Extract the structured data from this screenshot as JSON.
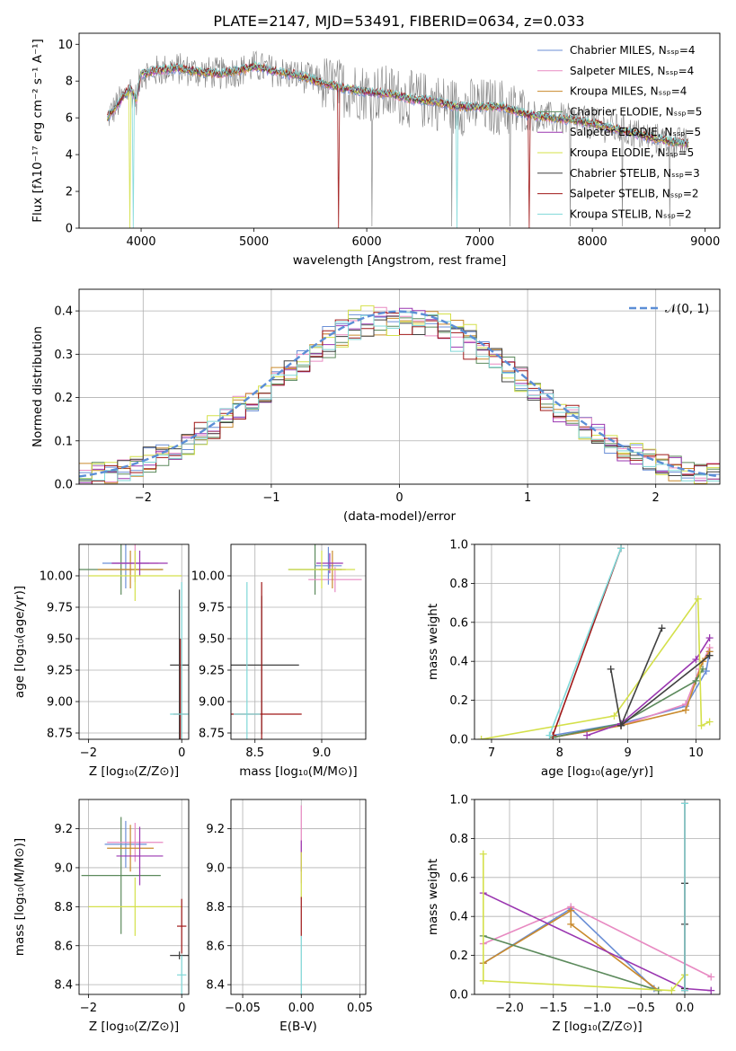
{
  "figure": {
    "title": "PLATE=2147, MJD=53491, FIBERID=0634, z=0.033"
  },
  "chart_data": [
    {
      "id": "spectrum",
      "type": "line",
      "title": "PLATE=2147, MJD=53491, FIBERID=0634, z=0.033",
      "xlabel": "wavelength [Angstrom, rest frame]",
      "ylabel": "Flux [fλ10⁻¹⁷ erg cm⁻² s⁻¹ A⁻¹]",
      "xlim": [
        3450,
        9130
      ],
      "ylim": [
        0,
        10.6
      ],
      "xticks": [
        "4000",
        "5000",
        "6000",
        "7000",
        "8000",
        "9000"
      ],
      "yticks": [
        "0",
        "2",
        "4",
        "6",
        "8",
        "10"
      ],
      "grid": false,
      "legend": "top-right",
      "data_line": {
        "color": "#808080"
      },
      "continuum": {
        "x": [
          3700,
          3800,
          3900,
          3960,
          4000,
          4100,
          4200,
          4300,
          4400,
          4500,
          4700,
          4900,
          5000,
          5200,
          5400,
          5600,
          5800,
          6000,
          6200,
          6400,
          6600,
          6800,
          7000,
          7200,
          7400,
          7600,
          7800,
          8000,
          8200,
          8400,
          8600,
          8800
        ],
        "y": [
          6.0,
          6.8,
          7.6,
          7.0,
          8.4,
          8.5,
          8.6,
          8.7,
          8.6,
          8.5,
          8.4,
          8.6,
          8.8,
          8.5,
          8.3,
          7.9,
          7.6,
          7.4,
          7.3,
          7.0,
          6.9,
          6.6,
          6.6,
          6.6,
          6.2,
          6.0,
          5.9,
          5.7,
          5.4,
          5.1,
          4.8,
          4.6
        ]
      },
      "series": [
        {
          "name": "Chabrier MILES, N_SSP=4",
          "color": "#6b8fd6"
        },
        {
          "name": "Salpeter MILES, N_SSP=4",
          "color": "#e88ac2"
        },
        {
          "name": "Kroupa MILES, N_SSP=4",
          "color": "#c98a2c"
        },
        {
          "name": "Chabrier ELODIE, N_SSP=5",
          "color": "#5c8a5c"
        },
        {
          "name": "Salpeter ELODIE, N_SSP=5",
          "color": "#9a36b0"
        },
        {
          "name": "Kroupa ELODIE, N_SSP=5",
          "color": "#d4e04a"
        },
        {
          "name": "Chabrier STELIB, N_SSP=3",
          "color": "#404040"
        },
        {
          "name": "Salpeter STELIB, N_SSP=2",
          "color": "#a01818"
        },
        {
          "name": "Kroupa STELIB, N_SSP=2",
          "color": "#7fd8d8"
        }
      ]
    },
    {
      "id": "residuals",
      "type": "line",
      "xlabel": "(data-model)/error",
      "ylabel": "Normed distribution",
      "xlim": [
        -2.5,
        2.5
      ],
      "ylim": [
        0,
        0.45
      ],
      "xticks": [
        "−2",
        "−1",
        "0",
        "1",
        "2"
      ],
      "yticks": [
        "0.0",
        "0.1",
        "0.2",
        "0.3",
        "0.4"
      ],
      "grid": true,
      "legend": "top-right",
      "normal_label": "𝒩(0, 1)",
      "normal_color": "#5b8ed6",
      "bin_width": 0.1
    },
    {
      "id": "age_vs_z",
      "type": "scatter",
      "xlabel": "Z [log₁₀(Z/Z⊙)]",
      "ylabel": "age  [log₁₀(age/yr)]",
      "xlim": [
        -2.2,
        0.15
      ],
      "ylim": [
        8.7,
        10.25
      ],
      "xticks": [
        "−2",
        "0"
      ],
      "yticks": [
        "8.75",
        "9.00",
        "9.25",
        "9.50",
        "9.75",
        "10.00"
      ],
      "grid": true,
      "points": [
        {
          "x": -1.3,
          "y": 10.05,
          "xerr": 0.9,
          "yerr": 0.2,
          "color": "#5c8a5c"
        },
        {
          "x": -1.2,
          "y": 10.1,
          "xerr": 0.5,
          "yerr": 0.2,
          "color": "#6b8fd6"
        },
        {
          "x": -1.0,
          "y": 10.1,
          "xerr": 0.5,
          "yerr": 0.15,
          "color": "#e88ac2"
        },
        {
          "x": -1.1,
          "y": 10.05,
          "xerr": 0.7,
          "yerr": 0.15,
          "color": "#c98a2c"
        },
        {
          "x": -0.9,
          "y": 10.1,
          "xerr": 0.6,
          "yerr": 0.1,
          "color": "#9a36b0"
        },
        {
          "x": -1.0,
          "y": 10.0,
          "xerr": 1.0,
          "yerr": 0.2,
          "color": "#d4e04a"
        },
        {
          "x": -0.05,
          "y": 9.29,
          "xerr": 0.2,
          "yerr": 0.6,
          "color": "#404040"
        },
        {
          "x": -0.03,
          "y": 8.9,
          "xerr": 0.15,
          "yerr": 0.6,
          "color": "#a01818"
        },
        {
          "x": 0.0,
          "y": 8.9,
          "xerr": 0.25,
          "yerr": 1.05,
          "color": "#7fd8d8"
        }
      ]
    },
    {
      "id": "age_vs_mass",
      "type": "scatter",
      "xlabel": "mass [log₁₀(M/M⊙)]",
      "ylabel": "",
      "xlim": [
        8.32,
        9.33
      ],
      "ylim": [
        8.7,
        10.25
      ],
      "xticks": [
        "8.5",
        "9.0"
      ],
      "yticks": [
        "8.75",
        "9.00",
        "9.25",
        "9.50",
        "9.75",
        "10.00"
      ],
      "grid": true,
      "points": [
        {
          "x": 8.95,
          "y": 10.05,
          "xerr": 0.2,
          "yerr": 0.2,
          "color": "#5c8a5c"
        },
        {
          "x": 9.05,
          "y": 10.08,
          "xerr": 0.1,
          "yerr": 0.15,
          "color": "#6b8fd6"
        },
        {
          "x": 9.1,
          "y": 9.97,
          "xerr": 0.2,
          "yerr": 0.1,
          "color": "#e88ac2"
        },
        {
          "x": 9.08,
          "y": 10.05,
          "xerr": 0.1,
          "yerr": 0.15,
          "color": "#c98a2c"
        },
        {
          "x": 9.06,
          "y": 10.1,
          "xerr": 0.1,
          "yerr": 0.08,
          "color": "#9a36b0"
        },
        {
          "x": 9.0,
          "y": 10.05,
          "xerr": 0.25,
          "yerr": 0.15,
          "color": "#d4e04a"
        },
        {
          "x": 8.55,
          "y": 9.29,
          "xerr": 0.28,
          "yerr": 0.55,
          "color": "#404040"
        },
        {
          "x": 8.55,
          "y": 8.9,
          "xerr": 0.3,
          "yerr": 1.05,
          "color": "#a01818"
        },
        {
          "x": 8.44,
          "y": 8.9,
          "xerr": 0.1,
          "yerr": 1.05,
          "color": "#7fd8d8"
        }
      ]
    },
    {
      "id": "weight_vs_age",
      "type": "line",
      "xlabel": "age  [log₁₀(age/yr)]",
      "ylabel": "mass weight",
      "xlim": [
        6.75,
        10.35
      ],
      "ylim": [
        0,
        1.0
      ],
      "xticks": [
        "7",
        "8",
        "9",
        "10"
      ],
      "yticks": [
        "0.0",
        "0.2",
        "0.4",
        "0.6",
        "0.8",
        "1.0"
      ],
      "grid": true,
      "series": [
        {
          "color": "#6b8fd6",
          "x": [
            7.9,
            8.9,
            9.85,
            10.15,
            10.2
          ],
          "y": [
            0.02,
            0.08,
            0.17,
            0.35,
            0.45
          ]
        },
        {
          "color": "#e88ac2",
          "x": [
            7.9,
            8.9,
            9.85,
            10.05,
            10.2
          ],
          "y": [
            0.01,
            0.07,
            0.18,
            0.36,
            0.47
          ]
        },
        {
          "color": "#c98a2c",
          "x": [
            7.9,
            8.9,
            9.85,
            10.1,
            10.2
          ],
          "y": [
            0.01,
            0.07,
            0.15,
            0.4,
            0.45
          ]
        },
        {
          "color": "#5c8a5c",
          "x": [
            7.9,
            8.9,
            10.0,
            10.1
          ],
          "y": [
            0.01,
            0.08,
            0.3,
            0.36
          ]
        },
        {
          "color": "#9a36b0",
          "x": [
            8.4,
            8.9,
            10.0,
            10.2
          ],
          "y": [
            0.02,
            0.08,
            0.41,
            0.52
          ]
        },
        {
          "color": "#d4e04a",
          "x": [
            6.85,
            8.8,
            10.03,
            10.08,
            10.2
          ],
          "y": [
            0.0,
            0.12,
            0.72,
            0.07,
            0.09
          ]
        },
        {
          "color": "#404040",
          "x": [
            8.75,
            8.9,
            9.5,
            8.9,
            10.2
          ],
          "y": [
            0.36,
            0.07,
            0.57,
            0.07,
            0.43
          ]
        },
        {
          "color": "#a01818",
          "x": [
            7.9,
            8.9
          ],
          "y": [
            0.02,
            0.98
          ]
        },
        {
          "color": "#7fd8d8",
          "x": [
            7.85,
            8.9
          ],
          "y": [
            0.02,
            0.98
          ]
        }
      ]
    },
    {
      "id": "mass_vs_z",
      "type": "scatter",
      "xlabel": "Z [log₁₀(Z/Z⊙)]",
      "ylabel": "mass [log₁₀(M/M⊙)]",
      "xlim": [
        -2.2,
        0.15
      ],
      "ylim": [
        8.35,
        9.35
      ],
      "xticks": [
        "−2",
        "0"
      ],
      "yticks": [
        "8.4",
        "8.6",
        "8.8",
        "9.0",
        "9.2"
      ],
      "grid": true,
      "points": [
        {
          "x": -1.3,
          "y": 8.96,
          "xerr": 0.85,
          "yerr": 0.3,
          "color": "#5c8a5c"
        },
        {
          "x": -1.2,
          "y": 9.12,
          "xerr": 0.45,
          "yerr": 0.12,
          "color": "#6b8fd6"
        },
        {
          "x": -1.0,
          "y": 9.13,
          "xerr": 0.6,
          "yerr": 0.1,
          "color": "#e88ac2"
        },
        {
          "x": -1.1,
          "y": 9.1,
          "xerr": 0.5,
          "yerr": 0.12,
          "color": "#c98a2c"
        },
        {
          "x": -0.9,
          "y": 9.06,
          "xerr": 0.5,
          "yerr": 0.15,
          "color": "#9a36b0"
        },
        {
          "x": -1.0,
          "y": 8.8,
          "xerr": 1.0,
          "yerr": 0.15,
          "color": "#d4e04a"
        },
        {
          "x": -0.05,
          "y": 8.55,
          "xerr": 0.2,
          "yerr": 0.02,
          "color": "#404040"
        },
        {
          "x": 0.0,
          "y": 8.7,
          "xerr": 0.1,
          "yerr": 0.14,
          "color": "#a01818"
        },
        {
          "x": 0.0,
          "y": 8.45,
          "xerr": 0.1,
          "yerr": 0.1,
          "color": "#7fd8d8"
        }
      ]
    },
    {
      "id": "mass_vs_ebv",
      "type": "scatter",
      "xlabel": "E(B-V)",
      "ylabel": "",
      "xlim": [
        -0.06,
        0.055
      ],
      "ylim": [
        8.35,
        9.35
      ],
      "xticks": [
        "−0.05",
        "0.00",
        "0.05"
      ],
      "yticks": [
        "8.4",
        "8.6",
        "8.8",
        "9.0",
        "9.2"
      ],
      "grid": true,
      "points": [
        {
          "x": 0.0,
          "y": 9.12,
          "xerr": 0.0,
          "yerr": 0.2,
          "color": "#e88ac2"
        },
        {
          "x": 0.0,
          "y": 9.06,
          "xerr": 0.0,
          "yerr": 0.08,
          "color": "#9a36b0"
        },
        {
          "x": 0.0,
          "y": 8.96,
          "xerr": 0.0,
          "yerr": 0.12,
          "color": "#d4e04a"
        },
        {
          "x": 0.0,
          "y": 8.75,
          "xerr": 0.0,
          "yerr": 0.1,
          "color": "#a01818"
        },
        {
          "x": 0.0,
          "y": 8.5,
          "xerr": 0.0,
          "yerr": 0.15,
          "color": "#7fd8d8"
        }
      ]
    },
    {
      "id": "weight_vs_z",
      "type": "line",
      "xlabel": "Z [log₁₀(Z/Z⊙)]",
      "ylabel": "mass weight",
      "xlim": [
        -2.4,
        0.4
      ],
      "ylim": [
        0,
        1.0
      ],
      "xticks": [
        "−2.0",
        "−1.5",
        "−1.0",
        "−0.5",
        "0.0"
      ],
      "yticks": [
        "0.0",
        "0.2",
        "0.4",
        "0.6",
        "0.8",
        "1.0"
      ],
      "grid": true,
      "series": [
        {
          "color": "#6b8fd6",
          "x": [
            -2.3,
            -1.3,
            -0.35
          ],
          "y": [
            0.16,
            0.44,
            0.03
          ]
        },
        {
          "color": "#e88ac2",
          "x": [
            -2.3,
            -1.3,
            0.3
          ],
          "y": [
            0.26,
            0.45,
            0.09
          ]
        },
        {
          "color": "#c98a2c",
          "x": [
            -2.3,
            -1.3,
            -1.3,
            -0.3
          ],
          "y": [
            0.16,
            0.43,
            0.36,
            0.02
          ]
        },
        {
          "color": "#5c8a5c",
          "x": [
            -2.3,
            -0.3
          ],
          "y": [
            0.3,
            0.02
          ]
        },
        {
          "color": "#9a36b0",
          "x": [
            -2.3,
            0.0,
            0.3
          ],
          "y": [
            0.52,
            0.03,
            0.02
          ]
        },
        {
          "color": "#d4e04a",
          "x": [
            -2.3,
            -2.3,
            -0.15,
            0.0
          ],
          "y": [
            0.72,
            0.07,
            0.02,
            0.1
          ]
        },
        {
          "color": "#404040",
          "x": [
            0.0,
            0.0,
            0.0
          ],
          "y": [
            0.57,
            0.36,
            0.03
          ]
        },
        {
          "color": "#a01818",
          "x": [
            0.0,
            0.0
          ],
          "y": [
            0.02,
            0.98
          ]
        },
        {
          "color": "#7fd8d8",
          "x": [
            0.0,
            0.0
          ],
          "y": [
            0.02,
            0.98
          ]
        }
      ]
    }
  ]
}
